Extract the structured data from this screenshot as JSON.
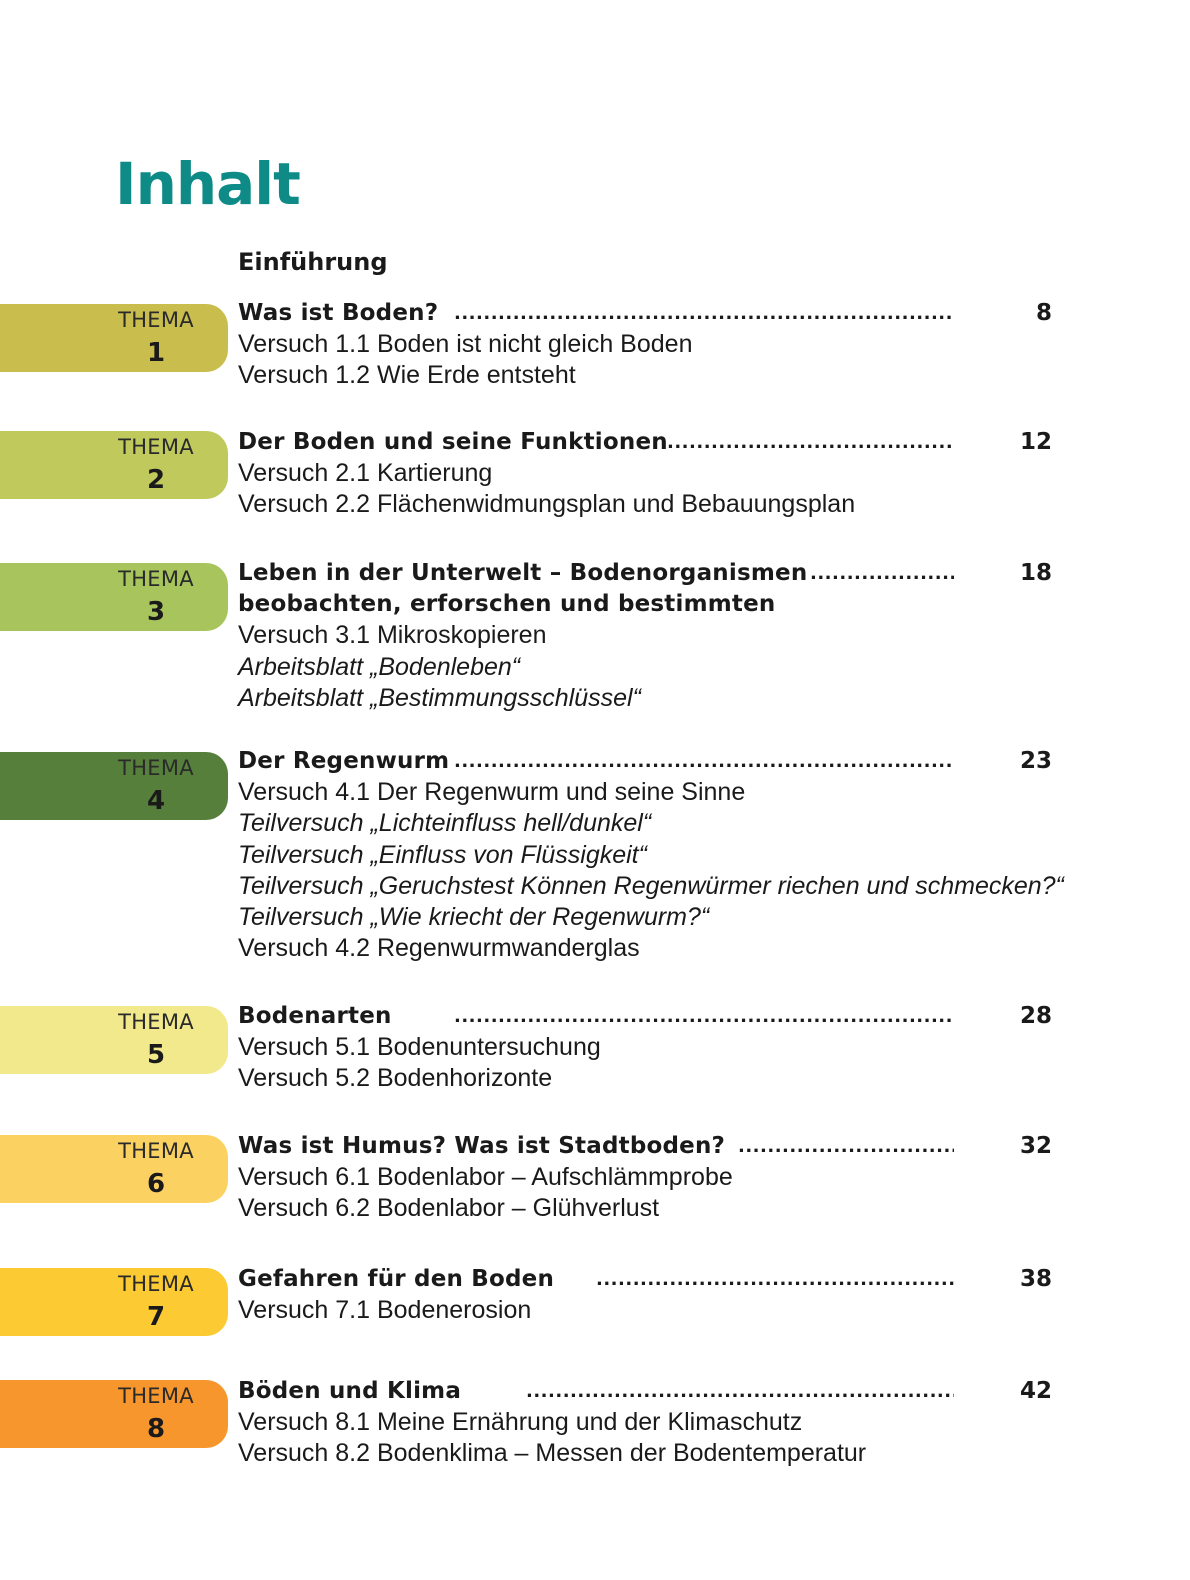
{
  "title": "Inhalt",
  "intro": "Einführung",
  "tab_label": "THEMA",
  "dot_leader": "..................................................................................................................",
  "themes": [
    {
      "number": "1",
      "color": "#c9bd4e",
      "heading": [
        "Was ist Boden?"
      ],
      "page": "8",
      "items": [
        {
          "text": "Versuch 1.1 Boden ist nicht gleich Boden"
        },
        {
          "text": "Versuch 1.2 Wie Erde entsteht"
        }
      ]
    },
    {
      "number": "2",
      "color": "#bfc95c",
      "heading": [
        "Der Boden und seine Funktionen"
      ],
      "page": "12",
      "items": [
        {
          "text": "Versuch 2.1 Kartierung"
        },
        {
          "text": "Versuch 2.2 Flächenwidmungsplan und Bebauungsplan"
        }
      ]
    },
    {
      "number": "3",
      "color": "#a7c55c",
      "heading": [
        "Leben in der Unterwelt – Bodenorganismen",
        "beobachten, erforschen und bestimmten"
      ],
      "page": "18",
      "items": [
        {
          "text": "Versuch 3.1 Mikroskopieren"
        },
        {
          "text": "Arbeitsblatt „Bodenleben“",
          "italic": true
        },
        {
          "text": "Arbeitsblatt „Bestimmungsschlüssel“",
          "italic": true
        }
      ]
    },
    {
      "number": "4",
      "color": "#567f3c",
      "heading": [
        "Der Regenwurm"
      ],
      "page": "23",
      "items": [
        {
          "text": "Versuch 4.1 Der Regenwurm und seine Sinne"
        },
        {
          "text": "Teilversuch „Lichteinfluss hell/dunkel“",
          "italic": true
        },
        {
          "text": "Teilversuch „Einfluss von Flüssigkeit“",
          "italic": true
        },
        {
          "text": "Teilversuch „Geruchstest Können Regenwürmer riechen und schmecken?“",
          "italic": true
        },
        {
          "text": "Teilversuch „Wie kriecht der Regenwurm?“",
          "italic": true
        },
        {
          "text": "Versuch 4.2 Regenwurmwanderglas"
        }
      ]
    },
    {
      "number": "5",
      "color": "#f2e98c",
      "heading": [
        "Bodenarten"
      ],
      "page": "28",
      "items": [
        {
          "text": "Versuch 5.1 Bodenuntersuchung"
        },
        {
          "text": "Versuch 5.2 Bodenhorizonte"
        }
      ]
    },
    {
      "number": "6",
      "color": "#fbd262",
      "heading": [
        "Was ist Humus?  Was ist Stadtboden?"
      ],
      "page": "32",
      "items": [
        {
          "text": "Versuch 6.1 Bodenlabor – Aufschlämmprobe"
        },
        {
          "text": "Versuch 6.2 Bodenlabor – Glühverlust"
        }
      ]
    },
    {
      "number": "7",
      "color": "#fcca32",
      "heading": [
        "Gefahren für den Boden"
      ],
      "page": "38",
      "items": [
        {
          "text": "Versuch 7.1 Bodenerosion"
        }
      ]
    },
    {
      "number": "8",
      "color": "#f6962c",
      "heading": [
        "Böden und Klima"
      ],
      "page": "42",
      "items": [
        {
          "text": "Versuch 8.1 Meine Ernährung und der Klimaschutz"
        },
        {
          "text": "Versuch 8.2 Bodenklima – Messen der Bodentemperatur"
        }
      ]
    }
  ]
}
